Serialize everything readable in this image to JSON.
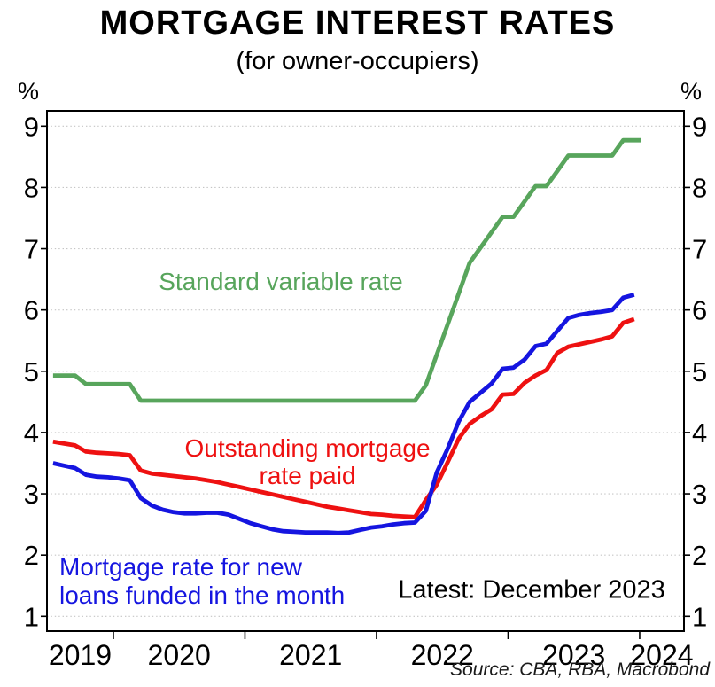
{
  "title": "MORTGAGE INTEREST RATES",
  "subtitle": "(for owner-occupiers)",
  "y_axis": {
    "unit_left": "%",
    "unit_right": "%",
    "ticks": [
      1,
      2,
      3,
      4,
      5,
      6,
      7,
      8,
      9
    ]
  },
  "x_axis": {
    "labels": [
      "2019",
      "2020",
      "2021",
      "2022",
      "2023",
      "2024"
    ],
    "tick_years": [
      2020,
      2021,
      2022,
      2023,
      2024
    ]
  },
  "annotations": {
    "series_green_label": "Standard variable rate",
    "series_red_label": "Outstanding mortgage\nrate paid",
    "series_blue_label": "Mortgage rate for new\nloans funded in the month",
    "latest": "Latest: December 2023",
    "source": "Source: CBA, RBA, Macrobond"
  },
  "colors": {
    "green": "#58A55C",
    "red": "#EE1111",
    "blue": "#1515E0",
    "grid": "#C5C5C5",
    "axis": "#000000"
  },
  "chart_data": {
    "type": "line",
    "x_start_month": "2019-07",
    "x_end_month": "2023-12",
    "frequency": "monthly",
    "n_points": 54,
    "ylim": [
      0.75,
      9.25
    ],
    "y_ticks": [
      1,
      2,
      3,
      4,
      5,
      6,
      7,
      8,
      9
    ],
    "ylabel": "%",
    "xlabel": "",
    "grid": "horizontal-dotted",
    "legend_position": "in-plot-text-labels",
    "series": [
      {
        "name": "Standard variable rate",
        "color": "#58A55C",
        "values": [
          4.93,
          4.93,
          4.93,
          4.79,
          4.79,
          4.79,
          4.79,
          4.79,
          4.52,
          4.52,
          4.52,
          4.52,
          4.52,
          4.52,
          4.52,
          4.52,
          4.52,
          4.52,
          4.52,
          4.52,
          4.52,
          4.52,
          4.52,
          4.52,
          4.52,
          4.52,
          4.52,
          4.52,
          4.52,
          4.52,
          4.52,
          4.52,
          4.52,
          4.52,
          4.77,
          5.27,
          5.77,
          6.27,
          6.77,
          7.02,
          7.27,
          7.52,
          7.52,
          7.77,
          8.02,
          8.02,
          8.27,
          8.52,
          8.52,
          8.52,
          8.52,
          8.52,
          8.77,
          8.77
        ]
      },
      {
        "name": "Outstanding mortgage rate paid",
        "color": "#EE1111",
        "values": [
          3.85,
          3.82,
          3.79,
          3.69,
          3.67,
          3.66,
          3.65,
          3.63,
          3.38,
          3.33,
          3.31,
          3.29,
          3.27,
          3.25,
          3.22,
          3.19,
          3.15,
          3.11,
          3.07,
          3.03,
          2.99,
          2.95,
          2.91,
          2.87,
          2.83,
          2.79,
          2.76,
          2.73,
          2.7,
          2.67,
          2.66,
          2.64,
          2.63,
          2.62,
          2.9,
          3.15,
          3.52,
          3.9,
          4.14,
          4.27,
          4.38,
          4.62,
          4.63,
          4.81,
          4.93,
          5.02,
          5.3,
          5.4,
          5.44,
          5.48,
          5.52,
          5.57,
          5.79,
          5.85
        ]
      },
      {
        "name": "Mortgage rate for new loans funded in the month",
        "color": "#1515E0",
        "values": [
          3.5,
          3.46,
          3.42,
          3.31,
          3.28,
          3.27,
          3.25,
          3.22,
          2.93,
          2.81,
          2.74,
          2.7,
          2.68,
          2.68,
          2.69,
          2.69,
          2.66,
          2.59,
          2.52,
          2.47,
          2.42,
          2.39,
          2.38,
          2.37,
          2.37,
          2.37,
          2.36,
          2.37,
          2.41,
          2.45,
          2.47,
          2.5,
          2.52,
          2.53,
          2.72,
          3.35,
          3.74,
          4.18,
          4.5,
          4.65,
          4.8,
          5.04,
          5.06,
          5.19,
          5.41,
          5.45,
          5.66,
          5.87,
          5.92,
          5.95,
          5.97,
          6.0,
          6.2,
          6.25
        ]
      }
    ]
  }
}
